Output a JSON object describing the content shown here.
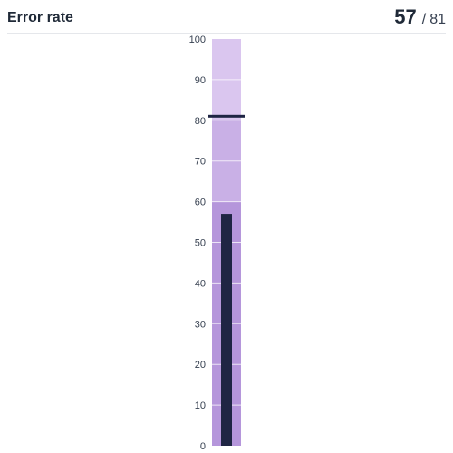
{
  "header": {
    "title": "Error rate",
    "value": "57",
    "separator": "/",
    "target": "81"
  },
  "chart_data": {
    "type": "bar",
    "subtype": "bullet",
    "title": "Error rate",
    "orientation": "vertical",
    "value": 57,
    "target": 81,
    "ylim": [
      0,
      100
    ],
    "yticks": [
      0,
      10,
      20,
      30,
      40,
      50,
      60,
      70,
      80,
      90,
      100
    ],
    "bands": [
      {
        "from": 0,
        "to": 60,
        "color": "#b596db"
      },
      {
        "from": 60,
        "to": 80,
        "color": "#c9b0e6"
      },
      {
        "from": 80,
        "to": 100,
        "color": "#dac6ef"
      }
    ],
    "bar_color": "#1f2544",
    "target_color": "#1f2544",
    "grid": true
  }
}
